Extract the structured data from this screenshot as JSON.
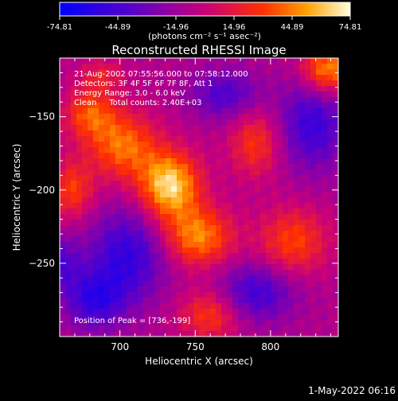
{
  "chart_data": {
    "type": "heatmap",
    "title": "Reconstructed RHESSI Image",
    "xlabel": "Heliocentric X (arcsec)",
    "ylabel": "Heliocentric Y (arcsec)",
    "xlim": [
      660,
      845
    ],
    "ylim": [
      -300,
      -110
    ],
    "x_ticks": [
      700,
      750,
      800
    ],
    "y_ticks": [
      -250,
      -200,
      -150
    ],
    "colorbar": {
      "range": [
        -74.81,
        74.81
      ],
      "ticks": [
        "-74.81",
        "-44.89",
        "-14.96",
        "14.96",
        "44.89",
        "74.81"
      ],
      "unit_label": "(photons cm⁻² s⁻¹ asec⁻²)"
    },
    "info_lines": [
      "21-Aug-2002 07:55:56.000 to 07:58:12.000",
      "Detectors: 3F 4F 5F 6F 7F 8F, Att 1",
      "Energy Range: 3.0 - 6.0 keV",
      "Clean     Total counts: 2.40E+03"
    ],
    "peak_label": "Position of Peak = [736,-199]",
    "footer_date": "1-May-2022 06:16",
    "grid": false,
    "blobs": [
      {
        "x": 733,
        "y": -197,
        "amp": 75,
        "sx": 14,
        "sy": 16
      },
      {
        "x": 752,
        "y": -232,
        "amp": 55,
        "sx": 16,
        "sy": 14
      },
      {
        "x": 702,
        "y": -170,
        "amp": 50,
        "sx": 16,
        "sy": 16
      },
      {
        "x": 680,
        "y": -148,
        "amp": 42,
        "sx": 12,
        "sy": 12
      },
      {
        "x": 668,
        "y": -200,
        "amp": 38,
        "sx": 10,
        "sy": 14
      },
      {
        "x": 790,
        "y": -168,
        "amp": 36,
        "sx": 12,
        "sy": 16
      },
      {
        "x": 815,
        "y": -235,
        "amp": 40,
        "sx": 16,
        "sy": 16
      },
      {
        "x": 838,
        "y": -118,
        "amp": 60,
        "sx": 12,
        "sy": 12
      },
      {
        "x": 760,
        "y": -285,
        "amp": 38,
        "sx": 14,
        "sy": 12
      },
      {
        "x": 688,
        "y": -122,
        "amp": 24,
        "sx": 10,
        "sy": 8
      },
      {
        "x": 705,
        "y": -245,
        "amp": -45,
        "sx": 18,
        "sy": 22
      },
      {
        "x": 683,
        "y": -275,
        "amp": -42,
        "sx": 14,
        "sy": 14
      },
      {
        "x": 828,
        "y": -155,
        "amp": -42,
        "sx": 16,
        "sy": 22
      },
      {
        "x": 790,
        "y": -270,
        "amp": -40,
        "sx": 18,
        "sy": 14
      },
      {
        "x": 770,
        "y": -135,
        "amp": -34,
        "sx": 16,
        "sy": 12
      },
      {
        "x": 660,
        "y": -250,
        "amp": -30,
        "sx": 10,
        "sy": 14
      }
    ]
  }
}
